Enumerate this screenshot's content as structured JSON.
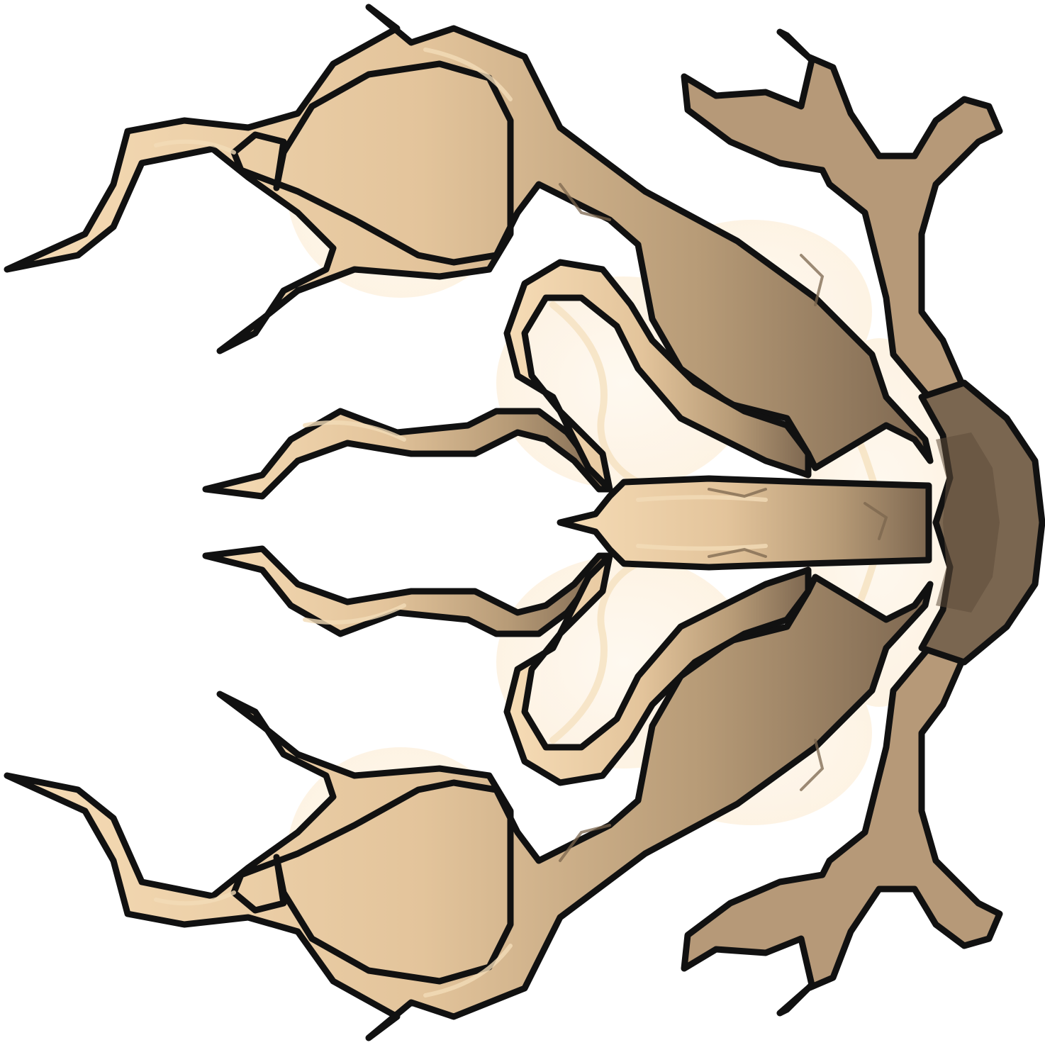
{
  "sprite": {
    "subject": "tree-root-sprite",
    "orientation": "trunk-right",
    "palette": {
      "background": "#ffffff",
      "outline": "#111111",
      "bark_light": "#f0d2a8",
      "bark_mid": "#c8ab83",
      "bark_dark": "#6e5a44",
      "glow_fill": "#fdf4e6",
      "vein_glow": "#f6e3c4"
    }
  }
}
